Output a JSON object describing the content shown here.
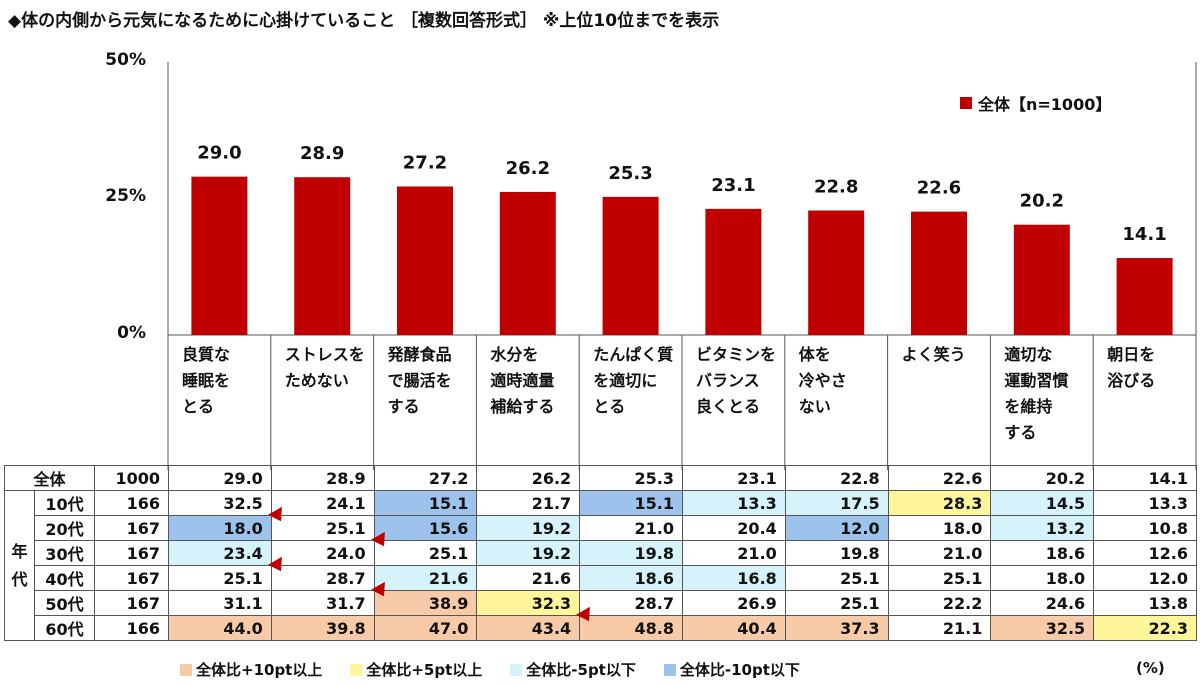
{
  "title": "◆体の内側から元気になるために心掛けていること ［複数回答形式］ ※上位10位までを表示",
  "legend_top": "全体【n=1000】",
  "unit_label": "(%)",
  "colors": {
    "bar": "#c00000",
    "above10": "#f8cba8",
    "above5": "#fff59a",
    "below5": "#d6f3fb",
    "below10": "#9dc3ec",
    "arrow": "#c00000"
  },
  "legend_bottom": [
    {
      "label": "全体比+10pt以上",
      "cls": "hi10"
    },
    {
      "label": "全体比+5pt以上",
      "cls": "hi5"
    },
    {
      "label": "全体比-5pt以下",
      "cls": "lo5"
    },
    {
      "label": "全体比-10pt以下",
      "cls": "lo10"
    }
  ],
  "chart_data": {
    "type": "bar",
    "categories": [
      "良質な睡眠をとる",
      "ストレスをためない",
      "発酵食品で腸活をする",
      "水分を適時適量補給する",
      "たんぱく質を適切にとる",
      "ビタミンをバランス良くとる",
      "体を冷やさない",
      "よく笑う",
      "適切な運動習慣を維持する",
      "朝日を浴びる"
    ],
    "category_lines": [
      [
        "良質な",
        "睡眠を",
        "とる"
      ],
      [
        "ストレスを",
        "ためない"
      ],
      [
        "発酵食品",
        "で腸活を",
        "する"
      ],
      [
        "水分を",
        "適時適量",
        "補給する"
      ],
      [
        "たんぱく質",
        "を適切に",
        "とる"
      ],
      [
        "ビタミンを",
        "バランス",
        "良くとる"
      ],
      [
        "体を",
        "冷やさ",
        "ない"
      ],
      [
        "よく笑う"
      ],
      [
        "適切な",
        "運動習慣",
        "を維持",
        "する"
      ],
      [
        "朝日を",
        "浴びる"
      ]
    ],
    "series": [
      {
        "name": "全体【n=1000】",
        "values": [
          29.0,
          28.9,
          27.2,
          26.2,
          25.3,
          23.1,
          22.8,
          22.6,
          20.2,
          14.1
        ]
      }
    ],
    "ylim": [
      0,
      50
    ],
    "yticks": [
      "0%",
      "25%",
      "50%"
    ],
    "legend_position": "top-right",
    "grid": false
  },
  "table": {
    "group_label": "年代",
    "total": {
      "label": "全体",
      "n": "1000",
      "values": [
        "29.0",
        "28.9",
        "27.2",
        "26.2",
        "25.3",
        "23.1",
        "22.8",
        "22.6",
        "20.2",
        "14.1"
      ]
    },
    "rows": [
      {
        "label": "10代",
        "n": "166",
        "values": [
          "32.5",
          "24.1",
          "15.1",
          "21.7",
          "15.1",
          "13.3",
          "17.5",
          "28.3",
          "14.5",
          "13.3"
        ],
        "marks": [
          "",
          "",
          "lo10",
          "",
          "lo10",
          "lo5",
          "lo5",
          "hi5",
          "lo5",
          ""
        ],
        "arrows": []
      },
      {
        "label": "20代",
        "n": "167",
        "values": [
          "18.0",
          "25.1",
          "15.6",
          "19.2",
          "21.0",
          "20.4",
          "12.0",
          "18.0",
          "13.2",
          "10.8"
        ],
        "marks": [
          "lo10",
          "",
          "lo10",
          "lo5",
          "",
          "",
          "lo10",
          "",
          "lo5",
          ""
        ],
        "arrows": [
          1
        ]
      },
      {
        "label": "30代",
        "n": "167",
        "values": [
          "23.4",
          "24.0",
          "25.1",
          "19.2",
          "19.8",
          "21.0",
          "19.8",
          "21.0",
          "18.6",
          "12.6"
        ],
        "marks": [
          "lo5",
          "",
          "",
          "lo5",
          "lo5",
          "",
          "",
          "",
          "",
          ""
        ],
        "arrows": [
          2
        ]
      },
      {
        "label": "40代",
        "n": "167",
        "values": [
          "25.1",
          "28.7",
          "21.6",
          "21.6",
          "18.6",
          "16.8",
          "25.1",
          "25.1",
          "18.0",
          "12.0"
        ],
        "marks": [
          "",
          "",
          "lo5",
          "",
          "lo5",
          "lo5",
          "",
          "",
          "",
          ""
        ],
        "arrows": [
          1
        ]
      },
      {
        "label": "50代",
        "n": "167",
        "values": [
          "31.1",
          "31.7",
          "38.9",
          "32.3",
          "28.7",
          "26.9",
          "25.1",
          "22.2",
          "24.6",
          "13.8"
        ],
        "marks": [
          "",
          "",
          "hi10",
          "hi5",
          "",
          "",
          "",
          "",
          "",
          ""
        ],
        "arrows": [
          2
        ]
      },
      {
        "label": "60代",
        "n": "166",
        "values": [
          "44.0",
          "39.8",
          "47.0",
          "43.4",
          "48.8",
          "40.4",
          "37.3",
          "21.1",
          "32.5",
          "22.3"
        ],
        "marks": [
          "hi10",
          "hi10",
          "hi10",
          "hi10",
          "hi10",
          "hi10",
          "hi10",
          "",
          "hi10",
          "hi5"
        ],
        "arrows": [
          4
        ]
      }
    ]
  }
}
